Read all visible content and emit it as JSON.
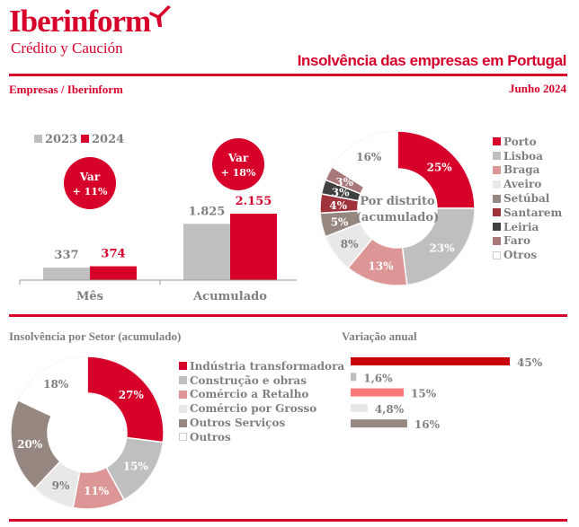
{
  "header": {
    "brand": "Iberinform",
    "brand_sub": "Crédito y Caución",
    "title": "Insolvência das empresas em Portugal",
    "source": "Empresas / Iberinform",
    "date": "Junho 2024"
  },
  "colors": {
    "brand_red": "#d6002a",
    "gray_text": "#7f7f7f"
  },
  "chart_data": [
    {
      "id": "monthly_vs_cumulative",
      "type": "bar",
      "categories": [
        "Mês",
        "Acumulado"
      ],
      "series": [
        {
          "name": "2023",
          "values": [
            337,
            1825
          ],
          "labels": [
            "337",
            "1.825"
          ],
          "color": "#bfbfbf"
        },
        {
          "name": "2024",
          "values": [
            374,
            2155
          ],
          "labels": [
            "374",
            "2.155"
          ],
          "color": "#d6002a"
        }
      ],
      "annotations": [
        {
          "category": "Mês",
          "line1": "Var",
          "line2": "+ 11%"
        },
        {
          "category": "Acumulado",
          "line1": "Var",
          "line2": "+ 18%"
        }
      ],
      "legend": "top-left",
      "ylim": [
        0,
        2500
      ]
    },
    {
      "id": "by_district",
      "type": "pie",
      "title": "Por distrito (acumulado)",
      "center_label_lines": [
        "Por distrito",
        "(acumulado)"
      ],
      "labels": [
        "Porto",
        "Lisboa",
        "Braga",
        "Aveiro",
        "Setúbal",
        "Santarem",
        "Leiria",
        "Faro",
        "Otros"
      ],
      "values": [
        25,
        23,
        13,
        8,
        5,
        4,
        3,
        3,
        16
      ],
      "value_labels": [
        "25%",
        "23%",
        "13%",
        "8%",
        "5%",
        "4%",
        "3%",
        "3%",
        "16%"
      ],
      "colors": [
        "#d6002a",
        "#bfbfbf",
        "#dc9696",
        "#e8e8e8",
        "#968780",
        "#a0323c",
        "#404040",
        "#a87878",
        "#ffffff"
      ],
      "label_colors": [
        "#ffffff",
        "#ffffff",
        "#ffffff",
        "#7f7f7f",
        "#ffffff",
        "#ffffff",
        "#ffffff",
        "#ffffff",
        "#7f7f7f"
      ],
      "legend": "right"
    },
    {
      "id": "by_sector",
      "type": "pie",
      "title": "Insolvência por Setor (acumulado)",
      "labels": [
        "Indústria transformadora",
        "Construção e obras",
        "Comércio a Retalho",
        "Comércio por Grosso",
        "Outros Serviços",
        "Outros"
      ],
      "values": [
        27,
        15,
        11,
        9,
        20,
        18
      ],
      "value_labels": [
        "27%",
        "15%",
        "11%",
        "9%",
        "20%",
        "18%"
      ],
      "colors": [
        "#d6002a",
        "#bfbfbf",
        "#dc9696",
        "#e8e8e8",
        "#968780",
        "#ffffff"
      ],
      "label_colors": [
        "#ffffff",
        "#ffffff",
        "#ffffff",
        "#7f7f7f",
        "#ffffff",
        "#7f7f7f"
      ],
      "legend": "right"
    },
    {
      "id": "annual_variation",
      "type": "bar",
      "orientation": "horizontal",
      "title": "Variação anual",
      "categories": [
        "Indústria transformadora",
        "Construção e obras",
        "Comércio a Retalho",
        "Comércio por Grosso",
        "Outros Serviços"
      ],
      "values": [
        45,
        1.6,
        15,
        4.8,
        16
      ],
      "value_labels": [
        "45%",
        "1,6%",
        "15%",
        "4,8%",
        "16%"
      ],
      "colors": [
        "#c8000a",
        "#bfbfbf",
        "#ff7878",
        "#e8e8e8",
        "#968780"
      ],
      "xlim": [
        0,
        45
      ]
    }
  ]
}
